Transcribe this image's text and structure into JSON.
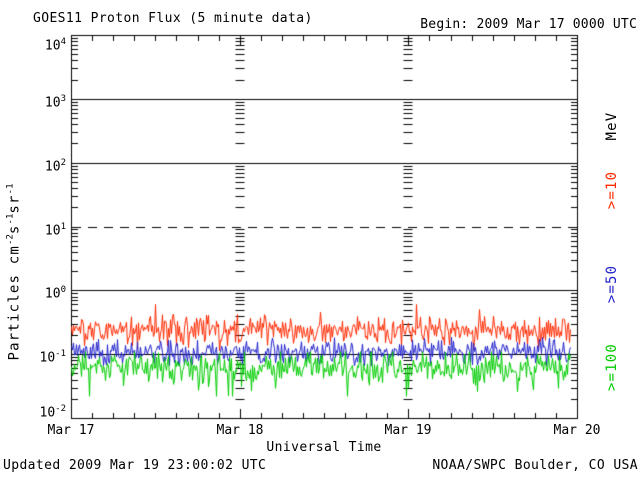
{
  "header": {
    "title": "GOES11 Proton Flux (5 minute data)",
    "begin_label": "Begin: 2009 Mar 17 0000 UTC"
  },
  "footer": {
    "updated": "Updated 2009 Mar 19 23:00:02 UTC",
    "source": "NOAA/SWPC Boulder, CO USA"
  },
  "chart_data": {
    "type": "line",
    "title": "GOES11 Proton Flux (5 minute data)",
    "xlabel": "Universal Time",
    "ylabel": "Particles cm-2s-1sr-1",
    "ylabel_segments": [
      [
        "Particles cm",
        0
      ],
      [
        "-2",
        1
      ],
      [
        "s",
        0
      ],
      [
        "-1",
        1
      ],
      [
        "sr",
        0
      ],
      [
        "-1",
        1
      ]
    ],
    "right_axis_label": "MeV",
    "x_ticks": [
      "Mar 17",
      "Mar 18",
      "Mar 19",
      "Mar 20"
    ],
    "x_days": 3,
    "x_minor_step_hours": 3,
    "y_scale": "log",
    "ylim_log10": [
      -2,
      4
    ],
    "y_tick_exponents": [
      4,
      3,
      2,
      1,
      0,
      -1,
      -2
    ],
    "gridlines": [
      {
        "log10": 3,
        "style": "solid"
      },
      {
        "log10": 2,
        "style": "solid"
      },
      {
        "log10": 1,
        "style": "dashed"
      },
      {
        "log10": 0,
        "style": "solid"
      },
      {
        "log10": -1,
        "style": "solid"
      }
    ],
    "begin_time": "2009 Mar 17 0000 UTC",
    "end_time": "2009 Mar 19 2300 UTC",
    "data_end_fraction": 0.986,
    "series": [
      {
        "name": ">=10",
        "unit": "MeV",
        "color": "#ff2a00",
        "approx_mean_flux": 0.22,
        "approx_min_flux": 0.11,
        "approx_max_flux": 0.6,
        "log10_mean": -0.63,
        "log10_sigma": 0.115,
        "log10_clamp": [
          -0.95,
          -0.22
        ],
        "spike_prob": 0.03,
        "spike_amp": 0.3
      },
      {
        "name": ">=50",
        "unit": "MeV",
        "color": "#2222cc",
        "approx_mean_flux": 0.107,
        "approx_min_flux": 0.066,
        "approx_max_flux": 0.22,
        "log10_mean": -0.97,
        "log10_sigma": 0.1,
        "log10_clamp": [
          -1.18,
          -0.66
        ],
        "spike_prob": 0,
        "spike_amp": 0
      },
      {
        "name": ">=100",
        "unit": "MeV",
        "color": "#00cc00",
        "approx_mean_flux": 0.063,
        "approx_min_flux": 0.022,
        "approx_max_flux": 0.11,
        "log10_mean": -1.2,
        "log10_sigma": 0.12,
        "log10_clamp": [
          -1.66,
          -0.96
        ],
        "spike_prob": 0.05,
        "spike_amp": -0.35
      }
    ]
  }
}
